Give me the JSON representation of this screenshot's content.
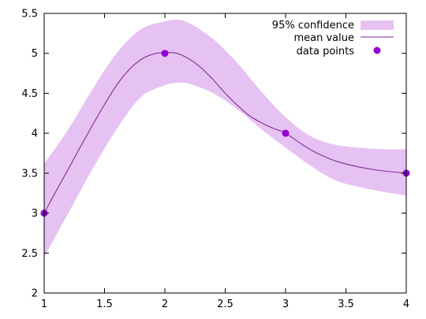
{
  "chart_data": {
    "type": "line",
    "title": "",
    "xlabel": "",
    "ylabel": "",
    "xlim": [
      1,
      4
    ],
    "ylim": [
      2,
      5.5
    ],
    "x_ticks": [
      1,
      1.5,
      2,
      2.5,
      3,
      3.5,
      4
    ],
    "x_tick_labels": [
      "1",
      "1.5",
      "2",
      "2.5",
      "3",
      "3.5",
      "4"
    ],
    "y_ticks": [
      2,
      2.5,
      3,
      3.5,
      4,
      4.5,
      5,
      5.5
    ],
    "y_tick_labels": [
      "2",
      "2.5",
      "3",
      "3.5",
      "4",
      "4.5",
      "5",
      "5.5"
    ],
    "grid": false,
    "legend_position": "top-right",
    "series": [
      {
        "name": "95% confidence",
        "kind": "band",
        "color": "#e6c2f2",
        "x": [
          1.0,
          1.2,
          1.4,
          1.6,
          1.8,
          2.0,
          2.1,
          2.2,
          2.4,
          2.6,
          2.8,
          3.0,
          3.2,
          3.4,
          3.6,
          3.8,
          4.0
        ],
        "lower": [
          2.45,
          3.0,
          3.55,
          4.05,
          4.45,
          4.6,
          4.63,
          4.62,
          4.5,
          4.3,
          4.05,
          3.82,
          3.6,
          3.42,
          3.33,
          3.27,
          3.22
        ],
        "upper": [
          3.62,
          4.05,
          4.55,
          5.0,
          5.3,
          5.4,
          5.42,
          5.38,
          5.18,
          4.88,
          4.52,
          4.2,
          3.97,
          3.86,
          3.82,
          3.8,
          3.8
        ]
      },
      {
        "name": "mean value",
        "kind": "line",
        "color": "#7a1f8f",
        "x": [
          1.0,
          1.1,
          1.2,
          1.3,
          1.4,
          1.5,
          1.6,
          1.7,
          1.8,
          1.9,
          2.0,
          2.1,
          2.2,
          2.3,
          2.4,
          2.5,
          2.6,
          2.7,
          2.8,
          2.9,
          3.0,
          3.2,
          3.4,
          3.6,
          3.8,
          4.0
        ],
        "y": [
          3.0,
          3.28,
          3.55,
          3.83,
          4.1,
          4.36,
          4.6,
          4.79,
          4.92,
          4.99,
          5.01,
          5.0,
          4.93,
          4.82,
          4.67,
          4.5,
          4.35,
          4.22,
          4.13,
          4.06,
          4.0,
          3.8,
          3.66,
          3.58,
          3.53,
          3.5
        ]
      },
      {
        "name": "data points",
        "kind": "points",
        "color": "#9400d3",
        "x": [
          1,
          2,
          3,
          4
        ],
        "y": [
          3,
          5,
          4,
          3.5
        ]
      }
    ]
  }
}
